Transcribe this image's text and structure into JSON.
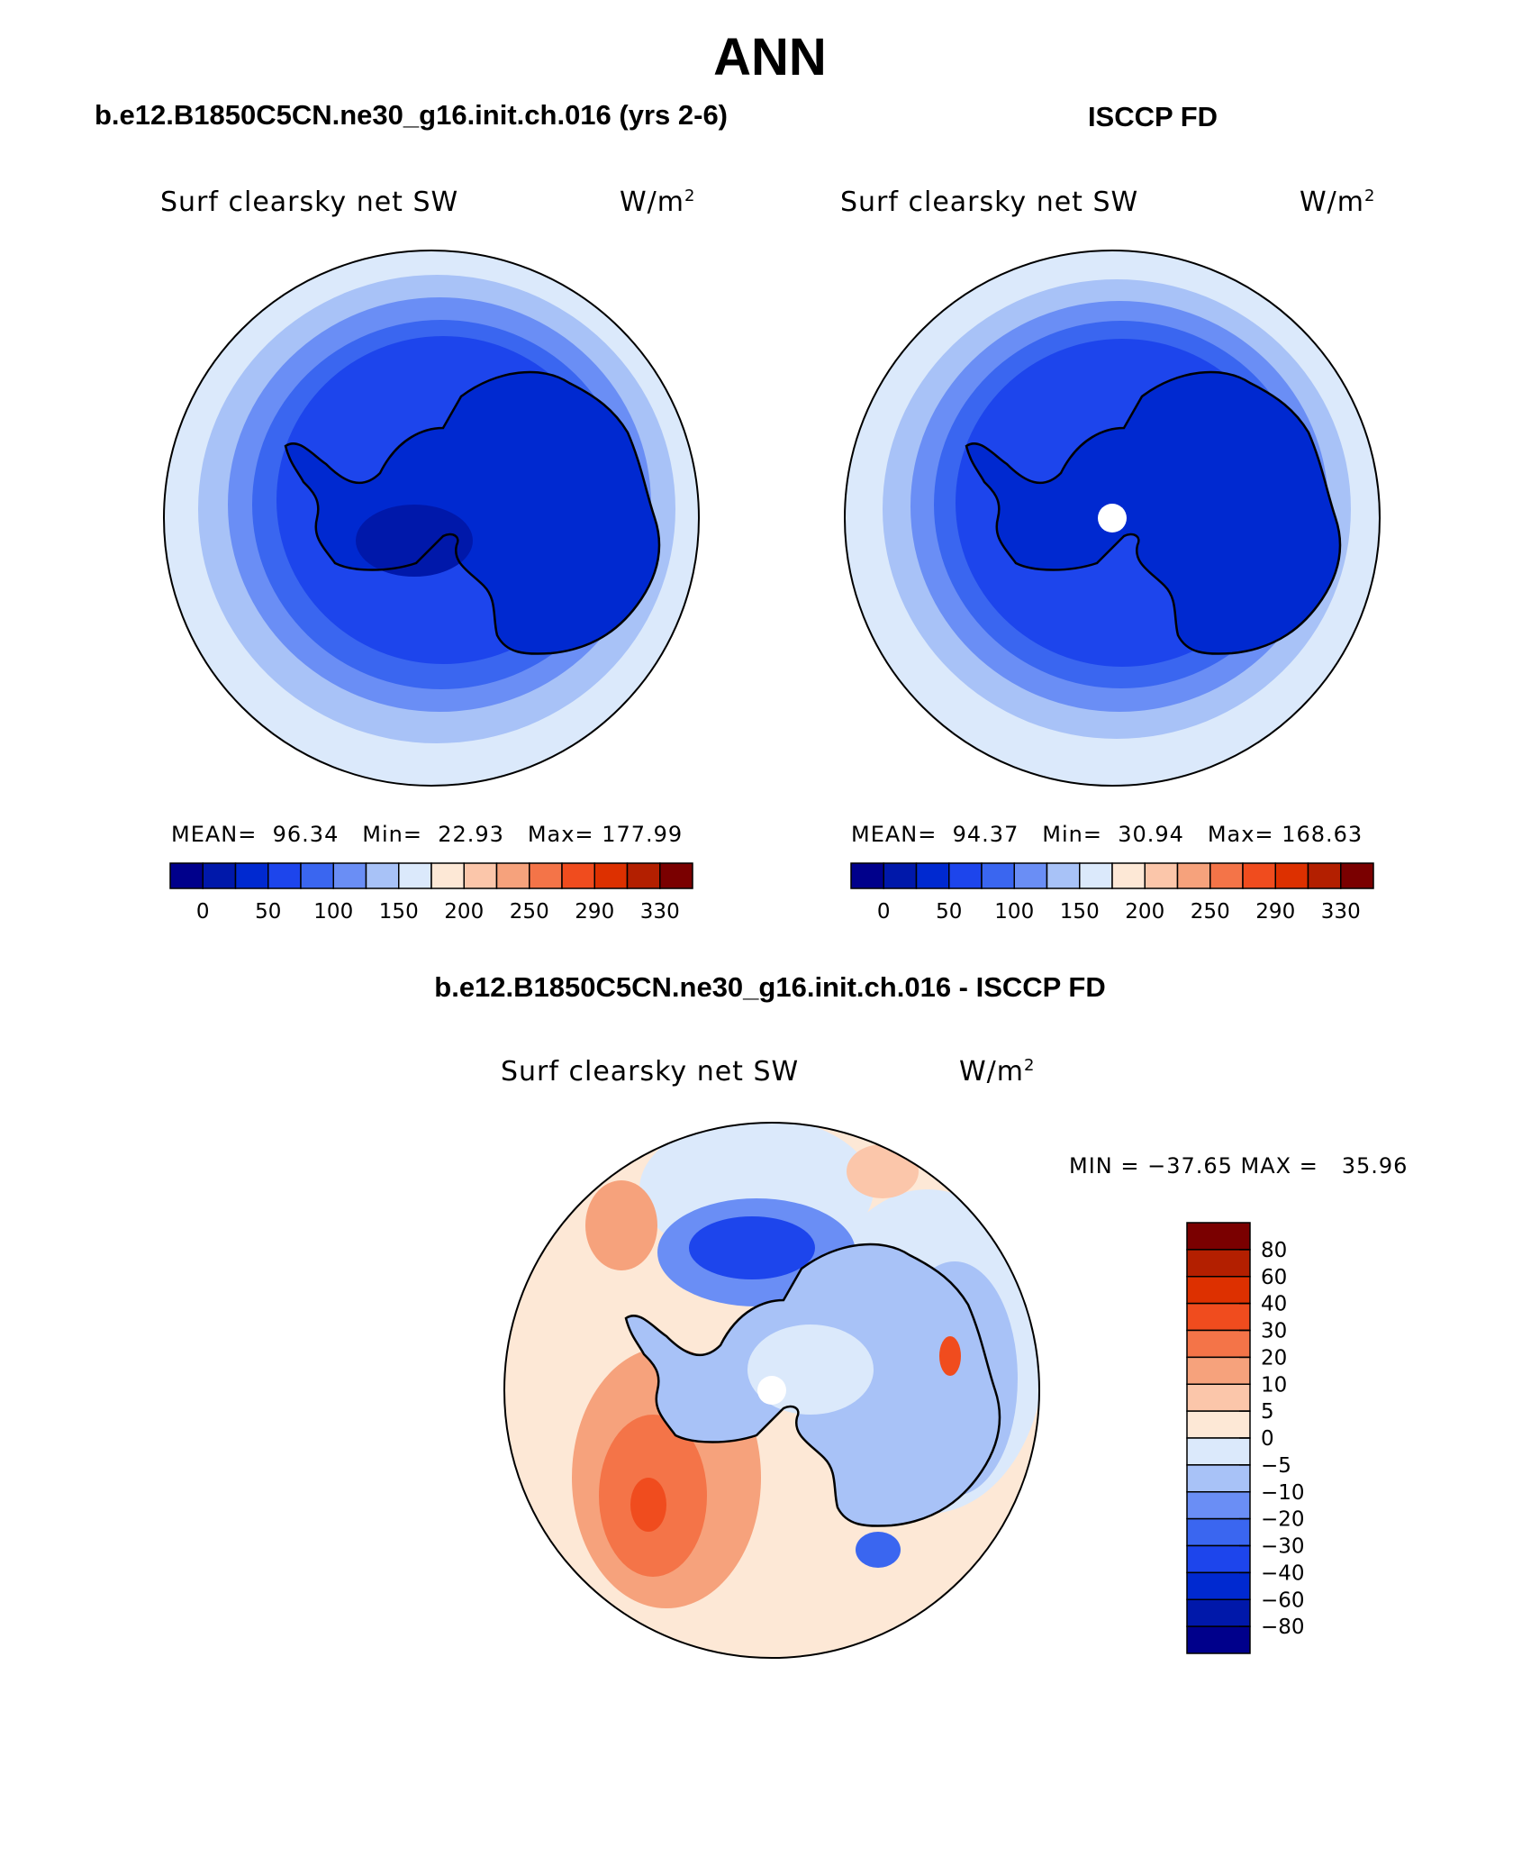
{
  "title": "ANN",
  "panels": [
    {
      "case_title": "b.e12.B1850C5CN.ne30_g16.init.ch.016 (yrs 2-6)",
      "variable": "Surf clearsky net SW",
      "units_base": "W/m",
      "units_exp": "2",
      "stats": {
        "mean_label": "MEAN=",
        "mean": "96.34",
        "min_label": "Min=",
        "min": "22.93",
        "max_label": "Max=",
        "max": "177.99"
      }
    },
    {
      "case_title": "ISCCP FD",
      "variable": "Surf clearsky net SW",
      "units_base": "W/m",
      "units_exp": "2",
      "stats": {
        "mean_label": "MEAN=",
        "mean": "94.37",
        "min_label": "Min=",
        "min": "30.94",
        "max_label": "Max=",
        "max": "168.63"
      }
    }
  ],
  "difference": {
    "title": "b.e12.B1850C5CN.ne30_g16.init.ch.016 - ISCCP FD",
    "variable": "Surf clearsky net SW",
    "units_base": "W/m",
    "units_exp": "2",
    "minmax_text": "MIN = −37.65 MAX =   35.96"
  },
  "colorbar_abs": {
    "colors": [
      "#00008b",
      "#0018aa",
      "#0029d0",
      "#1d45ec",
      "#3a66f0",
      "#6a8ef5",
      "#a8c2f7",
      "#dbe9fb",
      "#fde8d6",
      "#fbc6aa",
      "#f6a27c",
      "#f47448",
      "#f04c1e",
      "#dd3000",
      "#b31f00",
      "#7a0000"
    ],
    "tick_labels": [
      "0",
      "50",
      "100",
      "150",
      "200",
      "250",
      "290",
      "330"
    ]
  },
  "colorbar_diff": {
    "colors_top_down": [
      "#7a0000",
      "#b31f00",
      "#dd3000",
      "#f04c1e",
      "#f47448",
      "#f6a27c",
      "#fbc6aa",
      "#fde8d6",
      "#dbe9fb",
      "#a8c2f7",
      "#6a8ef5",
      "#3a66f0",
      "#1d45ec",
      "#0029d0",
      "#0018aa",
      "#00008b"
    ],
    "tick_labels_top_down": [
      "80",
      "60",
      "40",
      "30",
      "20",
      "10",
      "5",
      "0",
      "−5",
      "−10",
      "−20",
      "−30",
      "−40",
      "−60",
      "−80"
    ]
  }
}
